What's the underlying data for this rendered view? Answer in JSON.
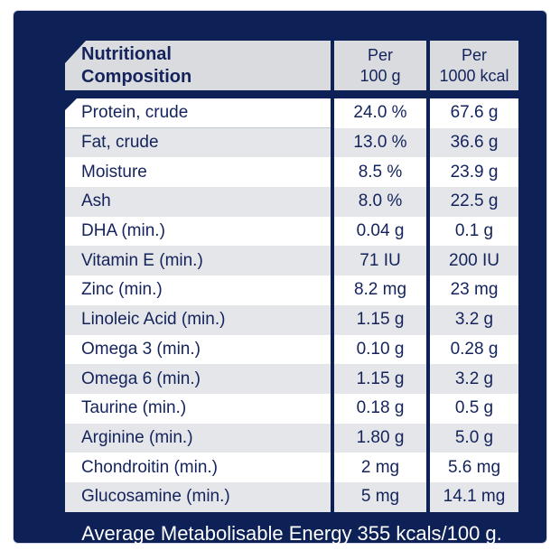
{
  "colors": {
    "navy_background": "#0e2156",
    "header_gray": "#d9dbdf",
    "stripe_gray": "#e4e6e9",
    "text_navy": "#14235c",
    "footer_text": "#ffffff"
  },
  "table": {
    "header": {
      "title_line1": "Nutritional",
      "title_line2": "Composition",
      "col1_line1": "Per",
      "col1_line2": "100 g",
      "col2_line1": "Per",
      "col2_line2": "1000 kcal"
    },
    "rows": [
      {
        "label": "Protein, crude",
        "per100g": "24.0 %",
        "per1000kcal": "67.6 g"
      },
      {
        "label": "Fat, crude",
        "per100g": "13.0 %",
        "per1000kcal": "36.6 g"
      },
      {
        "label": "Moisture",
        "per100g": "8.5 %",
        "per1000kcal": "23.9 g"
      },
      {
        "label": "Ash",
        "per100g": "8.0 %",
        "per1000kcal": "22.5 g"
      },
      {
        "label": "DHA (min.)",
        "per100g": "0.04 g",
        "per1000kcal": "0.1 g"
      },
      {
        "label": "Vitamin E (min.)",
        "per100g": "71 IU",
        "per1000kcal": "200 IU"
      },
      {
        "label": "Zinc (min.)",
        "per100g": "8.2 mg",
        "per1000kcal": "23 mg"
      },
      {
        "label": "Linoleic Acid (min.)",
        "per100g": "1.15 g",
        "per1000kcal": "3.2 g"
      },
      {
        "label": "Omega 3 (min.)",
        "per100g": "0.10 g",
        "per1000kcal": "0.28 g"
      },
      {
        "label": "Omega 6 (min.)",
        "per100g": "1.15 g",
        "per1000kcal": "3.2 g"
      },
      {
        "label": "Taurine (min.)",
        "per100g": "0.18 g",
        "per1000kcal": "0.5 g"
      },
      {
        "label": "Arginine (min.)",
        "per100g": "1.80 g",
        "per1000kcal": "5.0 g"
      },
      {
        "label": "Chondroitin (min.)",
        "per100g": "2 mg",
        "per1000kcal": "5.6 mg"
      },
      {
        "label": "Glucosamine (min.)",
        "per100g": "5 mg",
        "per1000kcal": "14.1 mg"
      }
    ]
  },
  "footer": {
    "text": "Average Metabolisable Energy 355 kcals/100 g."
  }
}
